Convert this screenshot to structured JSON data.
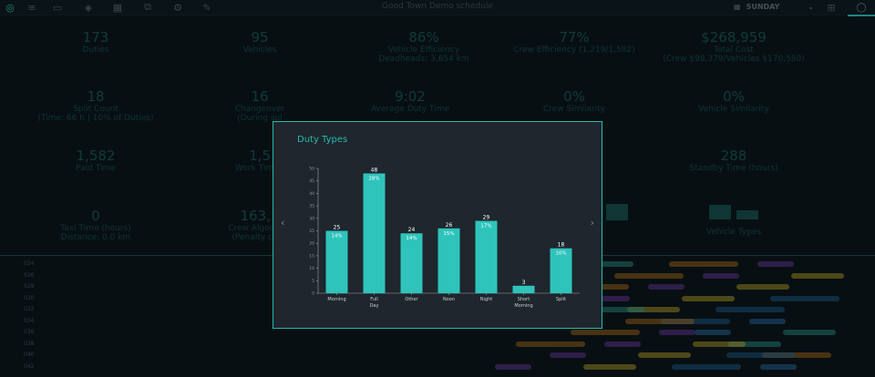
{
  "header": {
    "title": "Good Town Demo schedule",
    "day": "SUNDAY"
  },
  "kpis": [
    {
      "value": "173",
      "label": "Duties",
      "label2": ""
    },
    {
      "value": "95",
      "label": "Vehicles",
      "label2": ""
    },
    {
      "value": "86%",
      "label": "Vehicle Efficiency",
      "label2": "Deadheads: 3,654 km"
    },
    {
      "value": "77%",
      "label": "Crew Efficiency (1,219/1,582)",
      "label2": ""
    },
    {
      "value": "$268,959",
      "label": "Total Cost",
      "label2": "(Crew $98,379/Vehicles $170,580)"
    },
    {
      "value": "18",
      "label": "Split Count",
      "label2": "(Time: 66 h | 10% of Duties)"
    },
    {
      "value": "16",
      "label": "Changeover",
      "label2": "(During spl"
    },
    {
      "value": "9:02",
      "label": "Average Duty Time",
      "label2": ""
    },
    {
      "value": "0%",
      "label": "Crew Similarity",
      "label2": ""
    },
    {
      "value": "0%",
      "label": "Vehicle Similarity",
      "label2": ""
    },
    {
      "value": "1,582",
      "label": "Paid Time",
      "label2": ""
    },
    {
      "value": "1,5",
      "label": "Work Time (",
      "label2": ""
    },
    {
      "value": "288",
      "label": "Standby Time (hours)",
      "label2": ""
    },
    {
      "value": "0",
      "label": "Taxi Time (hours)",
      "label2": "Distance: 0.0 km"
    },
    {
      "value": "163,1",
      "label": "Crew Algorithm",
      "label2": "(Penalty cost:"
    },
    {
      "value": "",
      "label": "Vehicle Types",
      "label2": ""
    }
  ],
  "rows": [
    "024",
    "026",
    "028",
    "030",
    "032",
    "034",
    "036",
    "038",
    "040",
    "042"
  ],
  "chart_data": {
    "type": "bar",
    "title": "Duty Types",
    "categories": [
      "Morning",
      "Full Day",
      "Other",
      "Noon",
      "Night",
      "Short Morning",
      "Split"
    ],
    "values": [
      25,
      48,
      24,
      26,
      29,
      3,
      18
    ],
    "percent_labels": [
      "14%",
      "28%",
      "14%",
      "15%",
      "17%",
      "",
      "10%"
    ],
    "ylim": [
      0,
      50
    ],
    "yticks": [
      0,
      5,
      10,
      15,
      20,
      25,
      30,
      35,
      40,
      45,
      50
    ],
    "color": "#2ec4bc"
  },
  "modal": {
    "prev": "‹",
    "next": "›"
  }
}
